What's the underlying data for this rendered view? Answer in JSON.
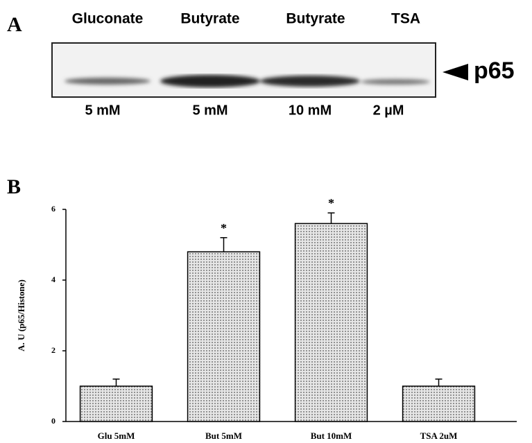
{
  "panel_a": {
    "label": "A",
    "lanes": [
      "Gluconate",
      "Butyrate",
      "Butyrate",
      "TSA"
    ],
    "doses": [
      "5 mM",
      "5 mM",
      "10 mM",
      "2 µM"
    ],
    "band_label": "p65"
  },
  "chart_data": {
    "type": "bar",
    "panel_label": "B",
    "ylabel": "A. U (p65/Histone)",
    "categories": [
      "Glu 5mM",
      "But 5mM",
      "But 10mM",
      "TSA 2uM"
    ],
    "values": [
      1.0,
      4.8,
      5.6,
      1.0
    ],
    "errors": [
      0.2,
      0.4,
      0.3,
      0.2
    ],
    "significance": [
      null,
      "*",
      "*",
      null
    ],
    "ylim": [
      0,
      6
    ],
    "yticks": [
      0,
      2,
      4,
      6
    ],
    "color": "#d9d9d9"
  }
}
